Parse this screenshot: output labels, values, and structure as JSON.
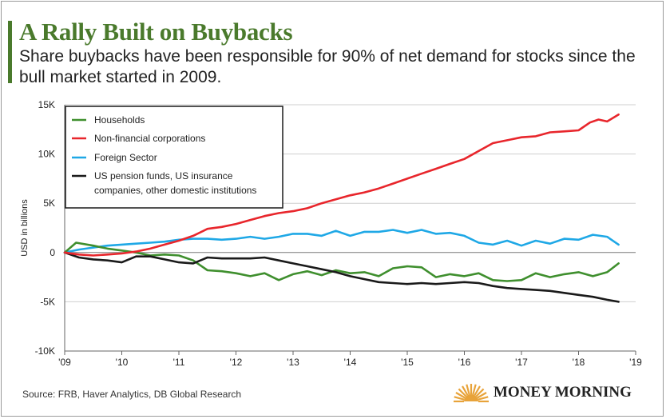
{
  "title": "A Rally Built on Buybacks",
  "subtitle": "Share buybacks have been responsible for 90% of net demand for stocks since the bull market started in 2009.",
  "source": "Source: FRB, Haver Analytics, DB Global Research",
  "logo_text": "MONEY MORNING",
  "colors": {
    "title": "#4a7a2c",
    "households": "#3f8f2e",
    "corporations": "#e8262c",
    "foreign": "#1fa8e6",
    "pension": "#1a1a1a",
    "logo_sun": "#e8a33a"
  },
  "chart_data": {
    "type": "line",
    "title": "",
    "xlabel": "",
    "ylabel": "USD in billions",
    "xlim": [
      2009,
      2019
    ],
    "ylim": [
      -10000,
      15000
    ],
    "x_ticks": [
      2009,
      2010,
      2011,
      2012,
      2013,
      2014,
      2015,
      2016,
      2017,
      2018,
      2019
    ],
    "x_tick_labels": [
      "'09",
      "'10",
      "'11",
      "'12",
      "'13",
      "'14",
      "'15",
      "'16",
      "'17",
      "'18",
      "'19"
    ],
    "y_ticks": [
      -10000,
      -5000,
      0,
      5000,
      10000,
      15000
    ],
    "y_tick_labels": [
      "-10K",
      "-5K",
      "0",
      "5K",
      "10K",
      "15K"
    ],
    "legend_position": "top-left",
    "series": [
      {
        "name": "Households",
        "color_key": "households",
        "x": [
          2009,
          2009.2,
          2009.5,
          2009.75,
          2010,
          2010.25,
          2010.5,
          2010.75,
          2011,
          2011.25,
          2011.5,
          2011.75,
          2012,
          2012.25,
          2012.5,
          2012.75,
          2013,
          2013.25,
          2013.5,
          2013.75,
          2014,
          2014.25,
          2014.5,
          2014.75,
          2015,
          2015.25,
          2015.5,
          2015.75,
          2016,
          2016.25,
          2016.5,
          2016.75,
          2017,
          2017.25,
          2017.5,
          2017.75,
          2018,
          2018.25,
          2018.5,
          2018.7
        ],
        "values": [
          0,
          1000,
          700,
          400,
          200,
          0,
          -300,
          -200,
          -300,
          -800,
          -1800,
          -1900,
          -2100,
          -2400,
          -2100,
          -2800,
          -2200,
          -1900,
          -2300,
          -1800,
          -2100,
          -2000,
          -2400,
          -1600,
          -1400,
          -1500,
          -2500,
          -2200,
          -2400,
          -2100,
          -2800,
          -2900,
          -2800,
          -2100,
          -2500,
          -2200,
          -2000,
          -2400,
          -2000,
          -1100
        ]
      },
      {
        "name": "Non-financial corporations",
        "color_key": "corporations",
        "x": [
          2009,
          2009.25,
          2009.5,
          2009.75,
          2010,
          2010.25,
          2010.5,
          2010.75,
          2011,
          2011.25,
          2011.5,
          2011.75,
          2012,
          2012.25,
          2012.5,
          2012.75,
          2013,
          2013.25,
          2013.5,
          2013.75,
          2014,
          2014.25,
          2014.5,
          2014.75,
          2015,
          2015.25,
          2015.5,
          2015.75,
          2016,
          2016.25,
          2016.5,
          2016.75,
          2017,
          2017.25,
          2017.5,
          2017.75,
          2018,
          2018.2,
          2018.35,
          2018.5,
          2018.7
        ],
        "values": [
          0,
          -200,
          -300,
          -200,
          -100,
          100,
          400,
          800,
          1200,
          1700,
          2400,
          2600,
          2900,
          3300,
          3700,
          4000,
          4200,
          4500,
          5000,
          5400,
          5800,
          6100,
          6500,
          7000,
          7500,
          8000,
          8500,
          9000,
          9500,
          10300,
          11100,
          11400,
          11700,
          11800,
          12200,
          12300,
          12400,
          13200,
          13500,
          13300,
          14000
        ]
      },
      {
        "name": "Foreign Sector",
        "color_key": "foreign",
        "x": [
          2009,
          2009.25,
          2009.5,
          2009.75,
          2010,
          2010.25,
          2010.5,
          2010.75,
          2011,
          2011.25,
          2011.5,
          2011.75,
          2012,
          2012.25,
          2012.5,
          2012.75,
          2013,
          2013.25,
          2013.5,
          2013.75,
          2014,
          2014.25,
          2014.5,
          2014.75,
          2015,
          2015.25,
          2015.5,
          2015.75,
          2016,
          2016.25,
          2016.5,
          2016.75,
          2017,
          2017.25,
          2017.5,
          2017.75,
          2018,
          2018.25,
          2018.5,
          2018.7
        ],
        "values": [
          0,
          300,
          500,
          700,
          800,
          900,
          1000,
          1100,
          1300,
          1400,
          1400,
          1300,
          1400,
          1600,
          1400,
          1600,
          1900,
          1900,
          1700,
          2200,
          1700,
          2100,
          2100,
          2300,
          2000,
          2300,
          1900,
          2000,
          1700,
          1000,
          800,
          1200,
          700,
          1200,
          900,
          1400,
          1300,
          1800,
          1600,
          800
        ]
      },
      {
        "name": "US pension funds, US insurance companies, other domestic institutions",
        "color_key": "pension",
        "x": [
          2009,
          2009.25,
          2009.5,
          2009.75,
          2010,
          2010.25,
          2010.5,
          2010.75,
          2011,
          2011.25,
          2011.5,
          2011.75,
          2012,
          2012.25,
          2012.5,
          2012.75,
          2013,
          2013.25,
          2013.5,
          2013.75,
          2014,
          2014.25,
          2014.5,
          2014.75,
          2015,
          2015.25,
          2015.5,
          2015.75,
          2016,
          2016.25,
          2016.5,
          2016.75,
          2017,
          2017.25,
          2017.5,
          2017.75,
          2018,
          2018.25,
          2018.5,
          2018.7
        ],
        "values": [
          0,
          -500,
          -700,
          -800,
          -1000,
          -400,
          -400,
          -700,
          -1000,
          -1100,
          -500,
          -600,
          -600,
          -600,
          -500,
          -800,
          -1100,
          -1400,
          -1700,
          -2000,
          -2400,
          -2700,
          -3000,
          -3100,
          -3200,
          -3100,
          -3200,
          -3100,
          -3000,
          -3100,
          -3400,
          -3600,
          -3700,
          -3800,
          -3900,
          -4100,
          -4300,
          -4500,
          -4800,
          -5000
        ]
      }
    ],
    "legend_lines": [
      [
        "Households"
      ],
      [
        "Non-financial corporations"
      ],
      [
        "Foreign Sector"
      ],
      [
        "US pension funds, US insurance",
        "companies, other domestic institutions"
      ]
    ]
  }
}
